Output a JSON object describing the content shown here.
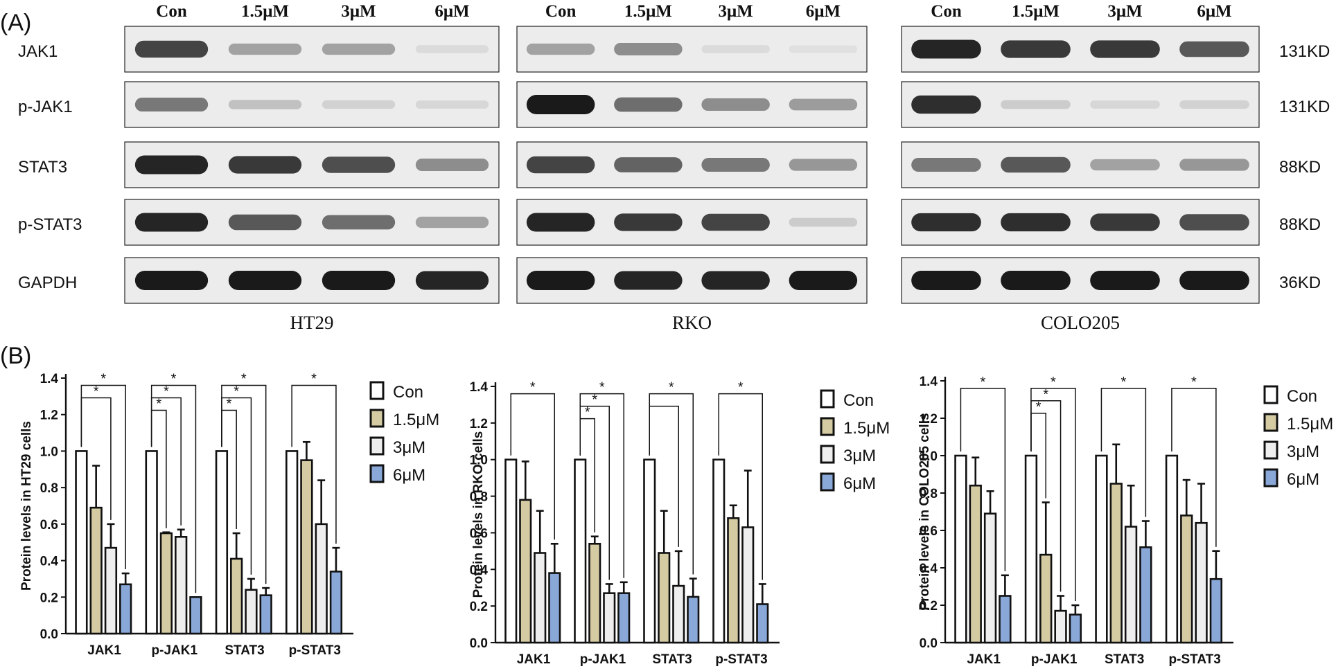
{
  "panel_labels": {
    "a": "(A)",
    "b": "(B)"
  },
  "western_blot": {
    "lane_labels": [
      "Con",
      "1.5μM",
      "3μM",
      "6μM"
    ],
    "proteins": [
      "JAK1",
      "p-JAK1",
      "STAT3",
      "p-STAT3",
      "GAPDH"
    ],
    "sizes": [
      "131KD",
      "131KD",
      "88KD",
      "88KD",
      "36KD"
    ],
    "cell_lines": [
      "HT29",
      "RKO",
      "COLO205"
    ],
    "band_color": "#1a1a1a",
    "membrane_color": "#ececec",
    "intensities": [
      [
        [
          0.8,
          0.35,
          0.35,
          0.08
        ],
        [
          0.55,
          0.2,
          0.12,
          0.1
        ],
        [
          0.95,
          0.85,
          0.75,
          0.45
        ],
        [
          0.95,
          0.7,
          0.6,
          0.35
        ],
        [
          1,
          1,
          1,
          0.95
        ]
      ],
      [
        [
          0.35,
          0.45,
          0.08,
          0.06
        ],
        [
          1,
          0.6,
          0.45,
          0.38
        ],
        [
          0.8,
          0.65,
          0.55,
          0.4
        ],
        [
          0.95,
          0.85,
          0.8,
          0.15
        ],
        [
          1,
          0.95,
          0.95,
          1
        ]
      ],
      [
        [
          0.95,
          0.85,
          0.85,
          0.7
        ],
        [
          0.9,
          0.15,
          0.1,
          0.12
        ],
        [
          0.55,
          0.7,
          0.35,
          0.4
        ],
        [
          0.9,
          0.9,
          0.85,
          0.75
        ],
        [
          1,
          1,
          1,
          1
        ]
      ]
    ]
  },
  "legend": {
    "items": [
      "Con",
      "1.5μM",
      "3μM",
      "6μM"
    ],
    "colors": [
      "#ffffff",
      "#d4cba3",
      "#eeeeee",
      "#89a8d8"
    ]
  },
  "chart_data": [
    {
      "type": "bar",
      "ylabel": "Protein  levels in HT29 cells",
      "ylim": [
        0,
        1.4
      ],
      "yticks": [
        "0.0",
        "0.2",
        "0.4",
        "0.6",
        "0.8",
        "1.0",
        "1.2",
        "1.4"
      ],
      "categories": [
        "JAK1",
        "p-JAK1",
        "STAT3",
        "p-STAT3"
      ],
      "series": [
        {
          "name": "Con",
          "values": [
            1.0,
            1.0,
            1.0,
            1.0
          ],
          "errors": [
            0,
            0,
            0,
            0
          ]
        },
        {
          "name": "1.5μM",
          "values": [
            0.69,
            0.55,
            0.41,
            0.95
          ],
          "errors": [
            0.23,
            0.005,
            0.14,
            0.1
          ]
        },
        {
          "name": "3μM",
          "values": [
            0.47,
            0.53,
            0.24,
            0.6
          ],
          "errors": [
            0.13,
            0.04,
            0.06,
            0.24
          ]
        },
        {
          "name": "6μM",
          "values": [
            0.27,
            0.2,
            0.21,
            0.34
          ],
          "errors": [
            0.06,
            0.0,
            0.04,
            0.13
          ]
        }
      ],
      "significance": [
        {
          "category": 0,
          "pairs": [
            [
              0,
              3
            ],
            [
              0,
              2
            ]
          ]
        },
        {
          "category": 1,
          "pairs": [
            [
              0,
              3
            ],
            [
              0,
              2
            ],
            [
              0,
              1
            ]
          ]
        },
        {
          "category": 2,
          "pairs": [
            [
              0,
              3
            ],
            [
              0,
              2
            ],
            [
              0,
              1
            ]
          ]
        },
        {
          "category": 3,
          "pairs": [
            [
              0,
              3
            ]
          ]
        }
      ],
      "significance_symbol": "*"
    },
    {
      "type": "bar",
      "ylabel": "Protein  levels in RKO cells",
      "ylim": [
        0,
        1.4
      ],
      "yticks": [
        "0.0",
        "0.2",
        "0.4",
        "0.6",
        "0.8",
        "1.0",
        "1.2",
        "1.4"
      ],
      "categories": [
        "JAK1",
        "p-JAK1",
        "STAT3",
        "p-STAT3"
      ],
      "series": [
        {
          "name": "Con",
          "values": [
            1.0,
            1.0,
            1.0,
            1.0
          ],
          "errors": [
            0,
            0,
            0,
            0
          ]
        },
        {
          "name": "1.5μM",
          "values": [
            0.78,
            0.54,
            0.49,
            0.68
          ],
          "errors": [
            0.21,
            0.04,
            0.23,
            0.07
          ]
        },
        {
          "name": "3μM",
          "values": [
            0.49,
            0.27,
            0.31,
            0.63
          ],
          "errors": [
            0.23,
            0.05,
            0.19,
            0.31
          ]
        },
        {
          "name": "6μM",
          "values": [
            0.38,
            0.27,
            0.25,
            0.21
          ],
          "errors": [
            0.16,
            0.06,
            0.1,
            0.11
          ]
        }
      ],
      "significance": [
        {
          "category": 0,
          "pairs": [
            [
              0,
              3
            ]
          ]
        },
        {
          "category": 1,
          "pairs": [
            [
              0,
              3
            ],
            [
              0,
              2
            ],
            [
              0,
              1
            ]
          ]
        },
        {
          "category": 2,
          "pairs": [
            [
              0,
              3
            ],
            [
              0,
              2,
              false
            ]
          ]
        },
        {
          "category": 3,
          "pairs": [
            [
              0,
              3
            ]
          ]
        }
      ],
      "significance_symbol": "*"
    },
    {
      "type": "bar",
      "ylabel": "Protein  levels in COLO205 cells",
      "ylim": [
        0,
        1.4
      ],
      "yticks": [
        "0.0",
        "0.2",
        "0.4",
        "0.6",
        "0.8",
        "1.0",
        "1.2",
        "1.4"
      ],
      "categories": [
        "JAK1",
        "p-JAK1",
        "STAT3",
        "p-STAT3"
      ],
      "series": [
        {
          "name": "Con",
          "values": [
            1.0,
            1.0,
            1.0,
            1.0
          ],
          "errors": [
            0,
            0,
            0,
            0
          ]
        },
        {
          "name": "1.5μM",
          "values": [
            0.84,
            0.47,
            0.85,
            0.68
          ],
          "errors": [
            0.15,
            0.28,
            0.21,
            0.19
          ]
        },
        {
          "name": "3μM",
          "values": [
            0.69,
            0.17,
            0.62,
            0.64
          ],
          "errors": [
            0.12,
            0.08,
            0.22,
            0.21
          ]
        },
        {
          "name": "6μM",
          "values": [
            0.25,
            0.15,
            0.51,
            0.34
          ],
          "errors": [
            0.11,
            0.05,
            0.14,
            0.15
          ]
        }
      ],
      "significance": [
        {
          "category": 0,
          "pairs": [
            [
              0,
              3
            ]
          ]
        },
        {
          "category": 1,
          "pairs": [
            [
              0,
              3
            ],
            [
              0,
              2
            ],
            [
              0,
              1
            ]
          ]
        },
        {
          "category": 2,
          "pairs": [
            [
              0,
              3
            ]
          ]
        },
        {
          "category": 3,
          "pairs": [
            [
              0,
              3
            ]
          ]
        }
      ],
      "significance_symbol": "*"
    }
  ]
}
